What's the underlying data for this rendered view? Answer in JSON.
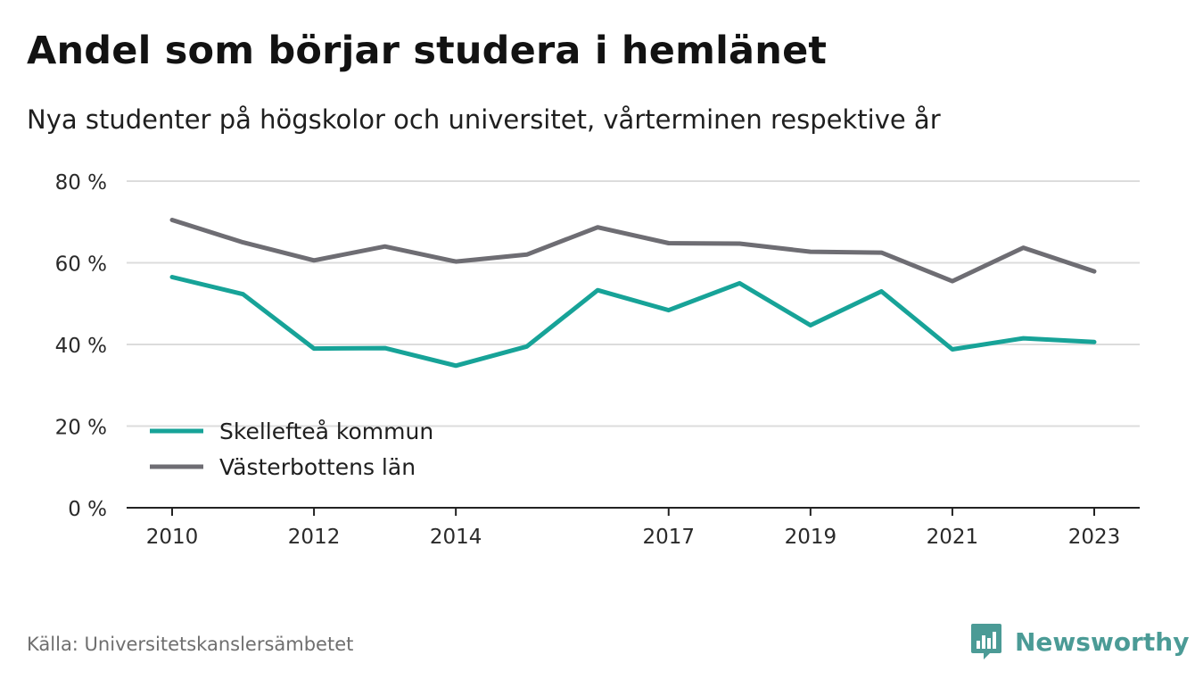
{
  "header": {
    "title": "Andel som börjar studera i hemlänet",
    "subtitle": "Nya studenter på högskolor och universitet, vårterminen respektive år"
  },
  "footer": {
    "source": "Källa: Universitetskanslersämbetet",
    "brand": "Newsworthy",
    "brand_color": "#4b9b96"
  },
  "chart_data": {
    "type": "line",
    "title": "Andel som börjar studera i hemlänet",
    "subtitle": "Nya studenter på högskolor och universitet, vårterminen respektive år",
    "xlabel": "",
    "ylabel": "",
    "x": [
      2010,
      2011,
      2012,
      2013,
      2014,
      2015,
      2016,
      2017,
      2018,
      2019,
      2020,
      2021,
      2022,
      2023
    ],
    "x_tick_labels": [
      "2010",
      "2012",
      "2014",
      "2017",
      "2019",
      "2021",
      "2023"
    ],
    "y_ticks": [
      0,
      20,
      40,
      60,
      80
    ],
    "y_tick_labels": [
      "0 %",
      "20 %",
      "40 %",
      "60 %",
      "80 %"
    ],
    "ylim": [
      0,
      80
    ],
    "grid": true,
    "legend_position": "bottom-left",
    "series": [
      {
        "name": "Skellefteå kommun",
        "color": "#17a398",
        "values": [
          56.5,
          52.3,
          39.0,
          39.1,
          34.8,
          39.5,
          53.3,
          48.4,
          55.0,
          44.7,
          53.0,
          38.8,
          41.5,
          40.6
        ]
      },
      {
        "name": "Västerbottens län",
        "color": "#6e6d73",
        "values": [
          70.5,
          65.0,
          60.6,
          64.0,
          60.3,
          62.0,
          68.7,
          64.8,
          64.7,
          62.7,
          62.5,
          55.5,
          63.7,
          57.9
        ]
      }
    ]
  }
}
